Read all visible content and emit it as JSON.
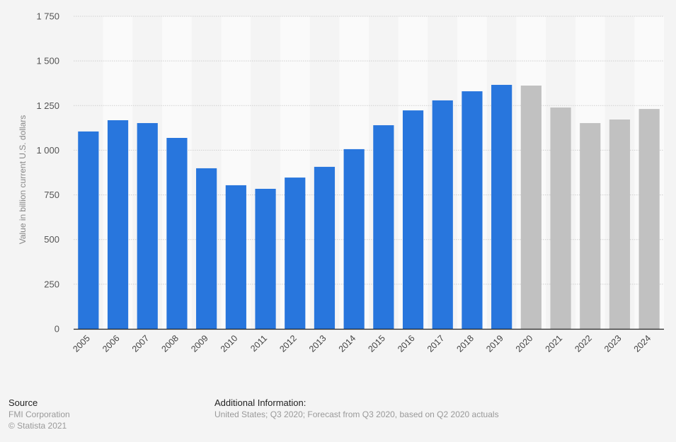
{
  "chart_data": {
    "type": "bar",
    "title": "",
    "xlabel": "",
    "ylabel": "Value in billion current U.S. dollars",
    "ylim": [
      0,
      1750
    ],
    "yticks": [
      0,
      250,
      500,
      750,
      1000,
      1250,
      1500,
      1750
    ],
    "ytick_labels": [
      "0",
      "250",
      "500",
      "750",
      "1 000",
      "1 250",
      "1 500",
      "1 750"
    ],
    "grid": true,
    "categories": [
      "2005",
      "2006",
      "2007",
      "2008",
      "2009",
      "2010",
      "2011",
      "2012",
      "2013",
      "2014",
      "2015",
      "2016",
      "2017",
      "2018",
      "2019",
      "2020",
      "2021",
      "2022",
      "2023",
      "2024"
    ],
    "values": [
      1105,
      1168,
      1152,
      1069,
      899,
      804,
      784,
      847,
      907,
      1006,
      1140,
      1223,
      1279,
      1330,
      1366,
      1362,
      1239,
      1152,
      1172,
      1231
    ],
    "forecast_from_index": 15,
    "colors": {
      "actual": "#2876dd",
      "forecast": "#c1c1c1",
      "axis": "#222222",
      "grid": "#cfcfcf",
      "band": "#fafafa"
    }
  },
  "footer": {
    "source_heading": "Source",
    "source_lines": [
      "FMI Corporation",
      "© Statista 2021"
    ],
    "info_heading": "Additional Information:",
    "info_text": "United States; Q3 2020; Forecast from Q3 2020, based on Q2 2020 actuals"
  }
}
